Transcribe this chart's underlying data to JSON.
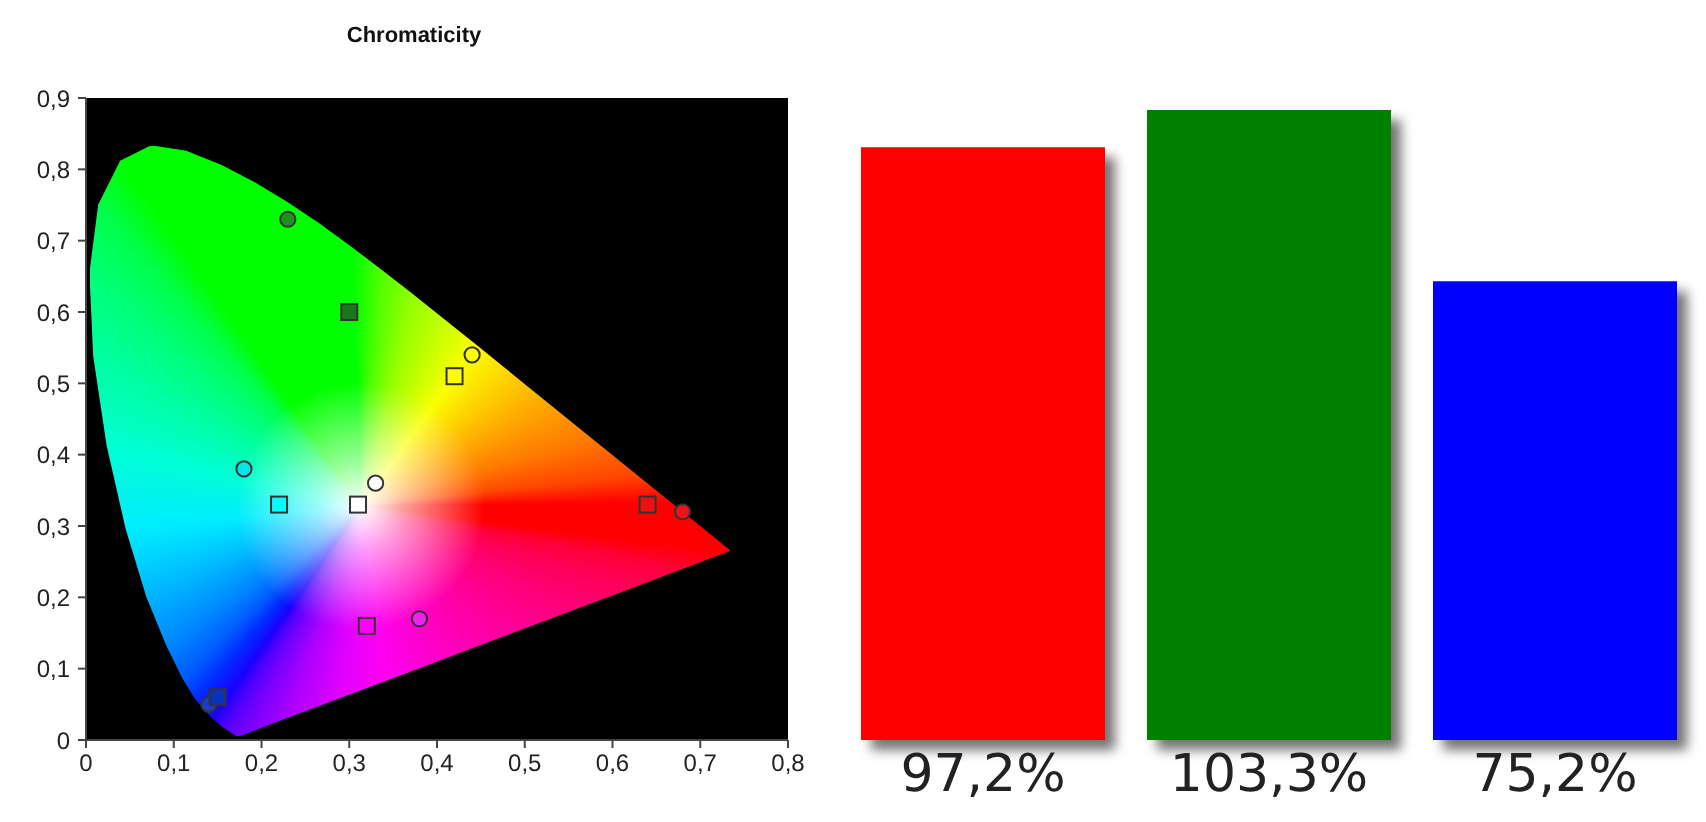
{
  "chart_data": [
    {
      "type": "scatter",
      "title": "Chromaticity",
      "xlim": [
        0,
        0.8
      ],
      "ylim": [
        0,
        0.9
      ],
      "xticks": [
        0,
        {
          "value": 0.1,
          "label": "0,1"
        },
        {
          "value": 0.2,
          "label": "0,2"
        },
        {
          "value": 0.3,
          "label": "0,3"
        },
        {
          "value": 0.4,
          "label": "0,4"
        },
        {
          "value": 0.5,
          "label": "0,5"
        },
        {
          "value": 0.6,
          "label": "0,6"
        },
        {
          "value": 0.7,
          "label": "0,7"
        },
        {
          "value": 0.8,
          "label": "0,8"
        }
      ],
      "yticks": [
        0,
        {
          "value": 0.1,
          "label": "0,1"
        },
        {
          "value": 0.2,
          "label": "0,2"
        },
        {
          "value": 0.3,
          "label": "0,3"
        },
        {
          "value": 0.4,
          "label": "0,4"
        },
        {
          "value": 0.5,
          "label": "0,5"
        },
        {
          "value": 0.6,
          "label": "0,6"
        },
        {
          "value": 0.7,
          "label": "0,7"
        },
        {
          "value": 0.8,
          "label": "0,8"
        },
        {
          "value": 0.9,
          "label": "0,9"
        }
      ],
      "series": [
        {
          "marker": "circle",
          "x": [
            0.68,
            0.23,
            0.14,
            0.18,
            0.38,
            0.44,
            0.33
          ],
          "values": [
            0.32,
            0.73,
            0.05,
            0.38,
            0.17,
            0.54,
            0.36
          ],
          "colors": [
            "#f01020",
            "#1f8f1f",
            "#1a3ccc",
            "#00e5e5",
            "#ee22ee",
            "#ffff00",
            "#ffffff"
          ]
        },
        {
          "marker": "square",
          "x": [
            0.64,
            0.3,
            0.15,
            0.22,
            0.32,
            0.42,
            0.31
          ],
          "values": [
            0.33,
            0.6,
            0.06,
            0.33,
            0.16,
            0.51,
            0.33
          ],
          "colors": [
            "#f01010",
            "#1a7a1a",
            "#0a33bb",
            "#00ffff",
            "#ff00ff",
            "#ffff00",
            "#ffffff"
          ]
        }
      ]
    },
    {
      "type": "bar",
      "categories": [
        null,
        null,
        null
      ],
      "values": [
        97.2,
        103.3,
        75.2
      ],
      "colors": [
        "#ff0000",
        "#008000",
        "#0000ff"
      ],
      "value_labels": [
        "97,2%",
        "103,3%",
        "75,2%"
      ]
    }
  ]
}
